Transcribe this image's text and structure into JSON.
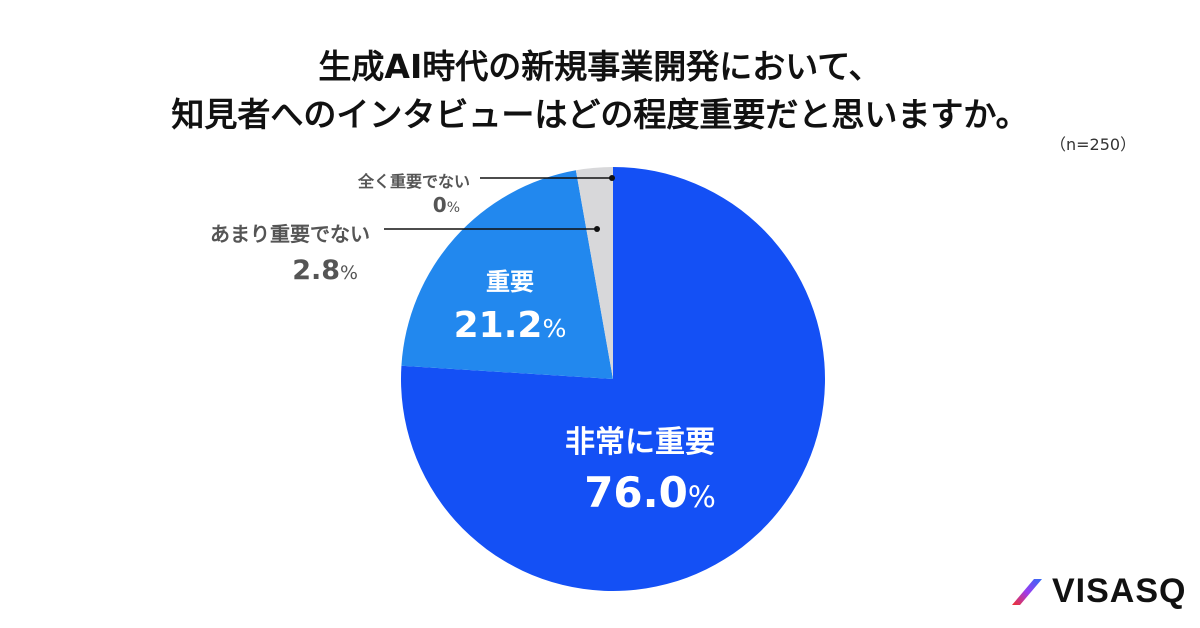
{
  "title": {
    "line1": "生成AI時代の新規事業開発において、",
    "line2": "知見者へのインタビューはどの程度重要だと思いますか。"
  },
  "sample_size": "（n=250）",
  "logo": {
    "text": "VISASQ"
  },
  "labels": {
    "very_important": {
      "name": "非常に重要",
      "value": "76.0",
      "unit": "%"
    },
    "important": {
      "name": "重要",
      "value": "21.2",
      "unit": "%"
    },
    "not_very_important": {
      "name": "あまり重要でない",
      "value": "2.8",
      "unit": "%"
    },
    "not_at_all_important": {
      "name": "全く重要でない",
      "value": "0",
      "unit": "%"
    }
  },
  "colors": {
    "very_important": "#1450F5",
    "important": "#2288EE",
    "not_very_important": "#D8D8DA",
    "not_at_all_important": "#C8C8CA"
  },
  "chart_data": {
    "type": "pie",
    "title": "生成AI時代の新規事業開発において、知見者へのインタビューはどの程度重要だと思いますか。",
    "subtitle": "（n=250）",
    "categories": [
      "非常に重要",
      "重要",
      "あまり重要でない",
      "全く重要でない"
    ],
    "values": [
      76.0,
      21.2,
      2.8,
      0
    ],
    "unit": "%",
    "start_angle": "12 o'clock",
    "direction": "clockwise",
    "legend": "none (direct labels with leader lines for small slices)"
  }
}
